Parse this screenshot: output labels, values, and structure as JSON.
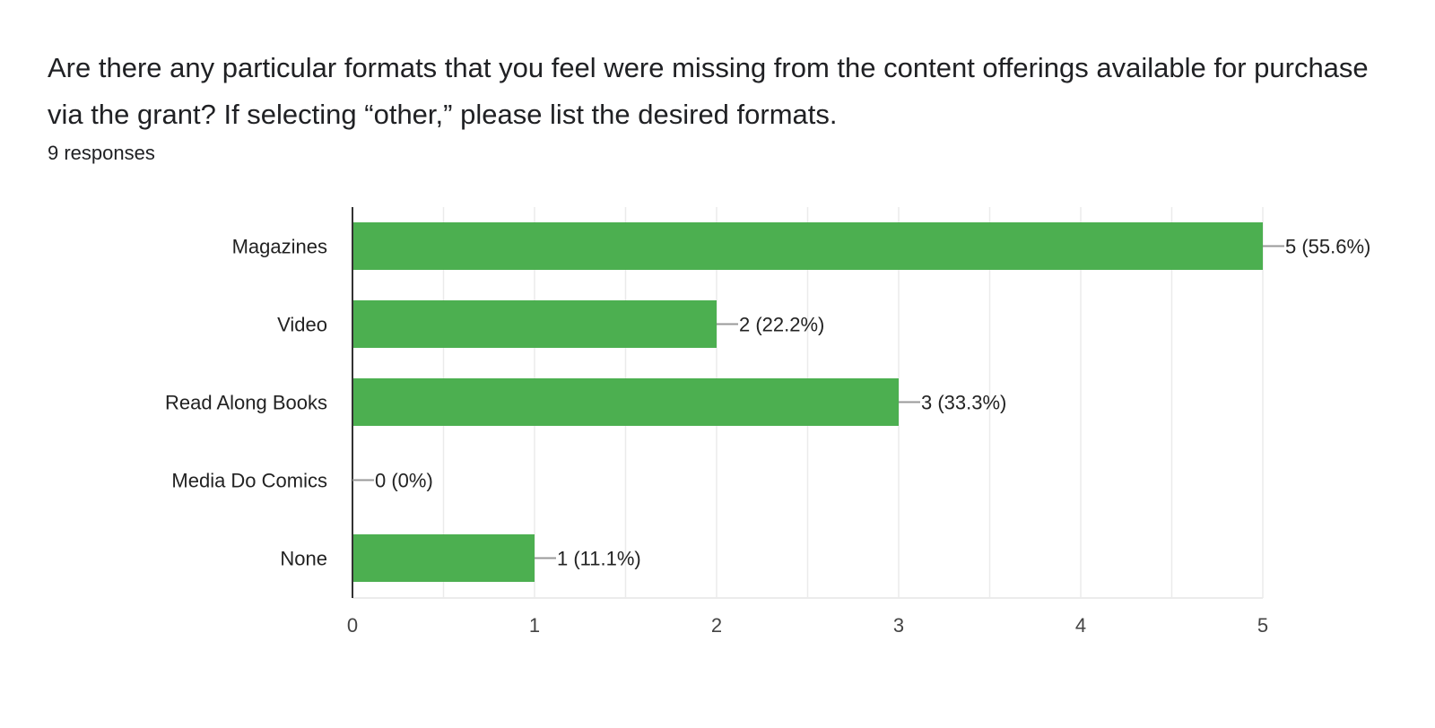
{
  "question": {
    "title": "Are there any particular formats that you feel were missing from the content offerings available for purchase via the grant?  If selecting “other,” please list the desired formats.",
    "responses": "9 responses"
  },
  "colors": {
    "bar": "#4caf50",
    "axis": "#333333",
    "grid": "#ebebeb",
    "leader": "#999999"
  },
  "chart_data": {
    "type": "bar",
    "orientation": "horizontal",
    "categories": [
      "Magazines",
      "Video",
      "Read Along Books",
      "Media Do Comics",
      "None"
    ],
    "values": [
      5,
      2,
      3,
      0,
      1
    ],
    "data_labels": [
      "5 (55.6%)",
      "2 (22.2%)",
      "3 (33.3%)",
      "0 (0%)",
      "1 (11.1%)"
    ],
    "x_ticks": [
      "0",
      "1",
      "2",
      "3",
      "4",
      "5"
    ],
    "xlim": [
      0,
      5
    ],
    "grid": true
  }
}
